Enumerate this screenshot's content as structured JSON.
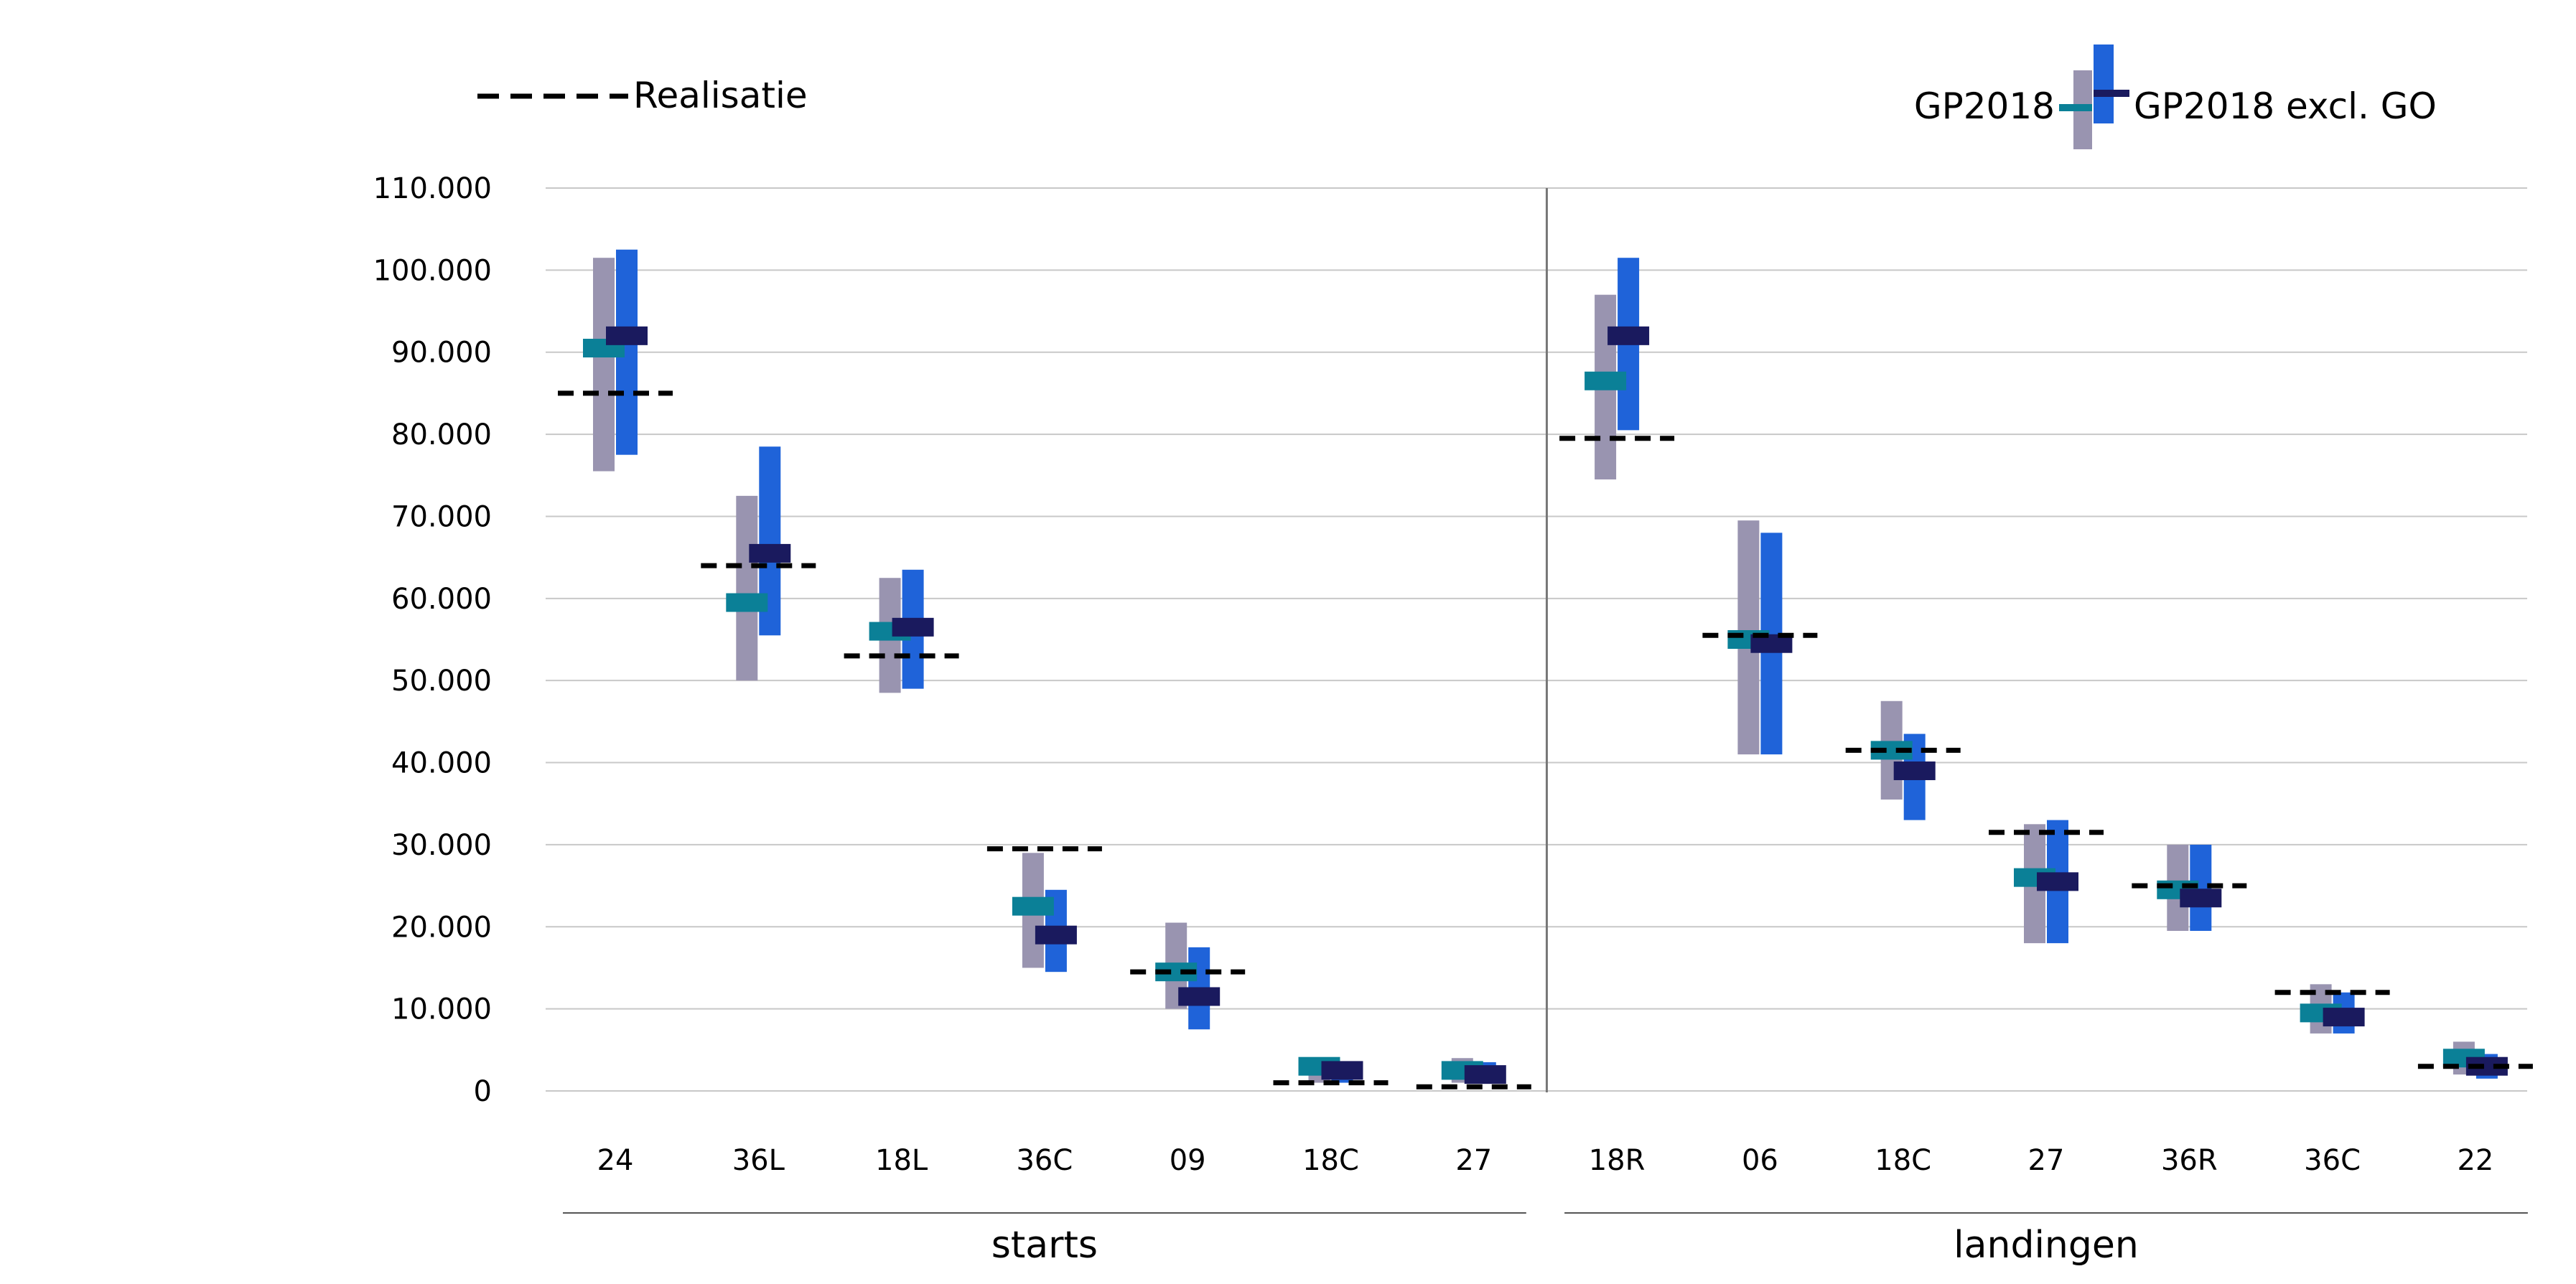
{
  "chart_data": {
    "type": "range-bar-with-markers",
    "title": "",
    "xlabel": "",
    "ylabel": "",
    "ylim": [
      0,
      110000
    ],
    "y_ticks": [
      "0",
      "10.000",
      "20.000",
      "30.000",
      "40.000",
      "50.000",
      "60.000",
      "70.000",
      "80.000",
      "90.000",
      "100.000",
      "110.000"
    ],
    "y_tick_values": [
      0,
      10000,
      20000,
      30000,
      40000,
      50000,
      60000,
      70000,
      80000,
      90000,
      100000,
      110000
    ],
    "grid": true,
    "legend_position": "top",
    "legend": {
      "realisatie": "Realisatie",
      "gp2018": "GP2018",
      "gp2018_excl_go": "GP2018 excl. GO"
    },
    "colors": {
      "gp2018_range": "#9994b0",
      "gp2018_marker": "#0b8097",
      "excl_range": "#1f63d9",
      "excl_marker": "#1a1a5e",
      "realisatie": "#000000",
      "grid": "#c8c8c8"
    },
    "groups": [
      {
        "label": "starts",
        "categories": [
          "24",
          "36L",
          "18L",
          "36C",
          "09",
          "18C",
          "27"
        ]
      },
      {
        "label": "landingen",
        "categories": [
          "18R",
          "06",
          "18C",
          "27",
          "36R",
          "36C",
          "22"
        ]
      }
    ],
    "categories": [
      "24",
      "36L",
      "18L",
      "36C",
      "09",
      "18C",
      "27",
      "18R",
      "06",
      "18C",
      "27",
      "36R",
      "36C",
      "22"
    ],
    "series": [
      {
        "name": "GP2018",
        "range_low": [
          75500,
          50000,
          48500,
          15000,
          10000,
          1000,
          1000,
          74500,
          41000,
          35500,
          18000,
          19500,
          7000,
          2000
        ],
        "range_high": [
          101500,
          72500,
          62500,
          29000,
          20500,
          4000,
          4000,
          97000,
          69500,
          47500,
          32500,
          30000,
          13000,
          6000
        ],
        "value": [
          90500,
          59500,
          56000,
          22500,
          14500,
          3000,
          2500,
          86500,
          55000,
          41500,
          26000,
          24500,
          9500,
          4000
        ]
      },
      {
        "name": "GP2018 excl. GO",
        "range_low": [
          77500,
          55500,
          49000,
          14500,
          7500,
          1000,
          1000,
          80500,
          41000,
          33000,
          18000,
          19500,
          7000,
          1500
        ],
        "range_high": [
          102500,
          78500,
          63500,
          24500,
          17500,
          3500,
          3500,
          101500,
          68000,
          43500,
          33000,
          30000,
          12000,
          4500
        ],
        "value": [
          92000,
          65500,
          56500,
          19000,
          11500,
          2500,
          2000,
          92000,
          54500,
          39000,
          25500,
          23500,
          9000,
          3000
        ]
      },
      {
        "name": "Realisatie",
        "value": [
          85000,
          64000,
          53000,
          29500,
          14500,
          1000,
          500,
          79500,
          55500,
          41500,
          31500,
          25000,
          12000,
          3000
        ]
      }
    ]
  }
}
